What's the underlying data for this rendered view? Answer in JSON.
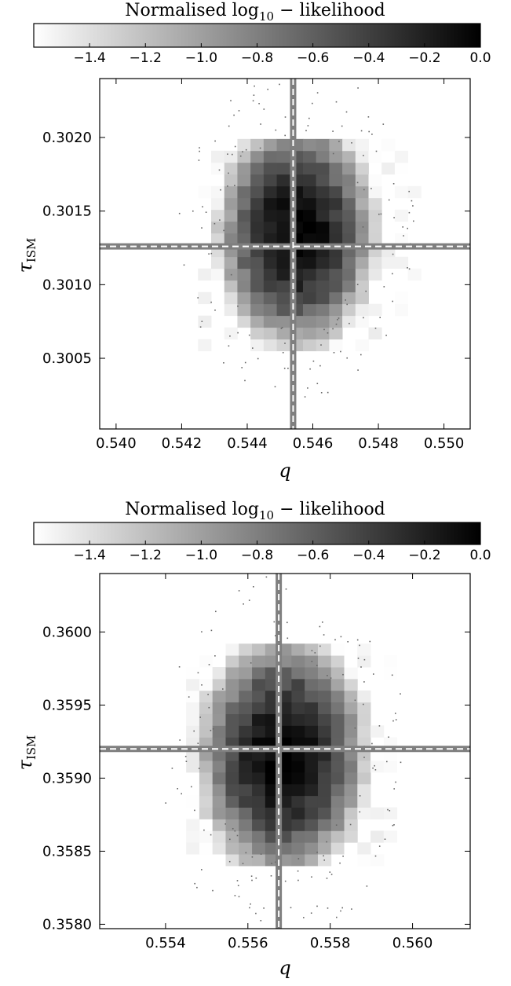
{
  "colorbar": {
    "title_prefix": "Normalised log",
    "title_sub": "10",
    "title_suffix": " − likelihood",
    "ticks": [
      -1.4,
      -1.2,
      -1.0,
      -0.8,
      -0.6,
      -0.4,
      -0.2,
      0.0
    ],
    "tick_labels": [
      "−1.4",
      "−1.2",
      "−1.0",
      "−0.8",
      "−0.6",
      "−0.4",
      "−0.2",
      "0.0"
    ],
    "range": [
      -1.6,
      0.0
    ],
    "colors": {
      "low": "#ffffff",
      "high": "#000000"
    }
  },
  "chart_data": [
    {
      "type": "heatmap",
      "title": "",
      "xlabel": "q",
      "ylabel": "τ",
      "ylabel_sub": "ISM",
      "xlim": [
        0.5395,
        0.5508
      ],
      "ylim": [
        0.30002,
        0.3024
      ],
      "xticks": [
        0.54,
        0.542,
        0.544,
        0.546,
        0.548,
        0.55
      ],
      "xtick_labels": [
        "0.540",
        "0.542",
        "0.544",
        "0.546",
        "0.548",
        "0.550"
      ],
      "yticks": [
        0.3005,
        0.301,
        0.3015,
        0.302
      ],
      "ytick_labels": [
        "0.3005",
        "0.3010",
        "0.3015",
        "0.3020"
      ],
      "peak": {
        "x": 0.5455,
        "y": 0.30135
      },
      "spread": {
        "x": 0.0014,
        "y": 0.00045
      },
      "truth": {
        "x": 0.5454,
        "y": 0.30126
      },
      "bin": {
        "x": 0.0004,
        "y": 8e-05
      },
      "extent": {
        "x": [
          0.5425,
          0.5495
        ],
        "y": [
          0.30055,
          0.30195
        ]
      },
      "colors": {
        "truth_line": "#7f7f7f",
        "marker": "#ffffff",
        "scatter": "#666666"
      }
    },
    {
      "type": "heatmap",
      "title": "",
      "xlabel": "q",
      "ylabel": "τ",
      "ylabel_sub": "ISM",
      "xlim": [
        0.5524,
        0.5614
      ],
      "ylim": [
        0.35797,
        0.3604
      ],
      "xticks": [
        0.554,
        0.556,
        0.558,
        0.56
      ],
      "xtick_labels": [
        "0.554",
        "0.556",
        "0.558",
        "0.560"
      ],
      "yticks": [
        0.358,
        0.3585,
        0.359,
        0.3595,
        0.36
      ],
      "ytick_labels": [
        "0.3580",
        "0.3585",
        "0.3590",
        "0.3595",
        "0.3600"
      ],
      "peak": {
        "x": 0.55685,
        "y": 0.35915
      },
      "spread": {
        "x": 0.0012,
        "y": 0.00048
      },
      "truth": {
        "x": 0.55675,
        "y": 0.3592
      },
      "bin": {
        "x": 0.00032,
        "y": 8e-05
      },
      "extent": {
        "x": [
          0.5545,
          0.5596
        ],
        "y": [
          0.3584,
          0.3599
        ]
      },
      "colors": {
        "truth_line": "#7f7f7f",
        "marker": "#ffffff",
        "scatter": "#666666"
      }
    }
  ]
}
